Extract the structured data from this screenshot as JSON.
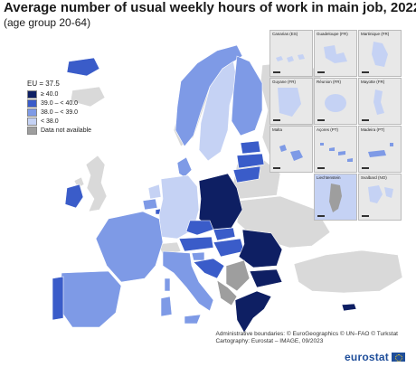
{
  "title": "Average number of usual weekly hours of work in main job, 2022",
  "subtitle": "(age group 20-64)",
  "legend": {
    "eu_label": "EU = 37.5",
    "items": [
      {
        "label": "≥ 40.0",
        "color": "#0e1f63"
      },
      {
        "label": "39.0 – < 40.0",
        "color": "#3a5cc9"
      },
      {
        "label": "38.0 – < 39.0",
        "color": "#7e9ae6"
      },
      {
        "label": "< 38.0",
        "color": "#c5d2f4"
      },
      {
        "label": "Data not available",
        "color": "#9e9e9e"
      }
    ]
  },
  "colors": {
    "sea": "#ffffff",
    "non_eu_land": "#d9d9d9",
    "border": "#ffffff"
  },
  "insets": [
    {
      "label": "Canarias (ES)",
      "class": "lt"
    },
    {
      "label": "Guadeloupe (FR)",
      "class": "lt"
    },
    {
      "label": "Martinique (FR)",
      "class": "lt"
    },
    {
      "label": "Guyane (FR)",
      "class": "lt"
    },
    {
      "label": "Réunion (FR)",
      "class": "lt"
    },
    {
      "label": "Mayotte (FR)",
      "class": "lt"
    },
    {
      "label": "Malta",
      "class": "md"
    },
    {
      "label": "Açores (PT)",
      "class": "md"
    },
    {
      "label": "Madeira (PT)",
      "class": "md"
    },
    {
      "label": "Liechtenstein",
      "class": "na"
    },
    {
      "label": "Svalbard (NO)",
      "class": "lt"
    }
  ],
  "credits": {
    "line1": "Administrative boundaries: © EuroGeographics © UN–FAO © Turkstat",
    "line2": "Cartography: Eurostat – IMAGE, 09/2023"
  },
  "logo": "eurostat"
}
